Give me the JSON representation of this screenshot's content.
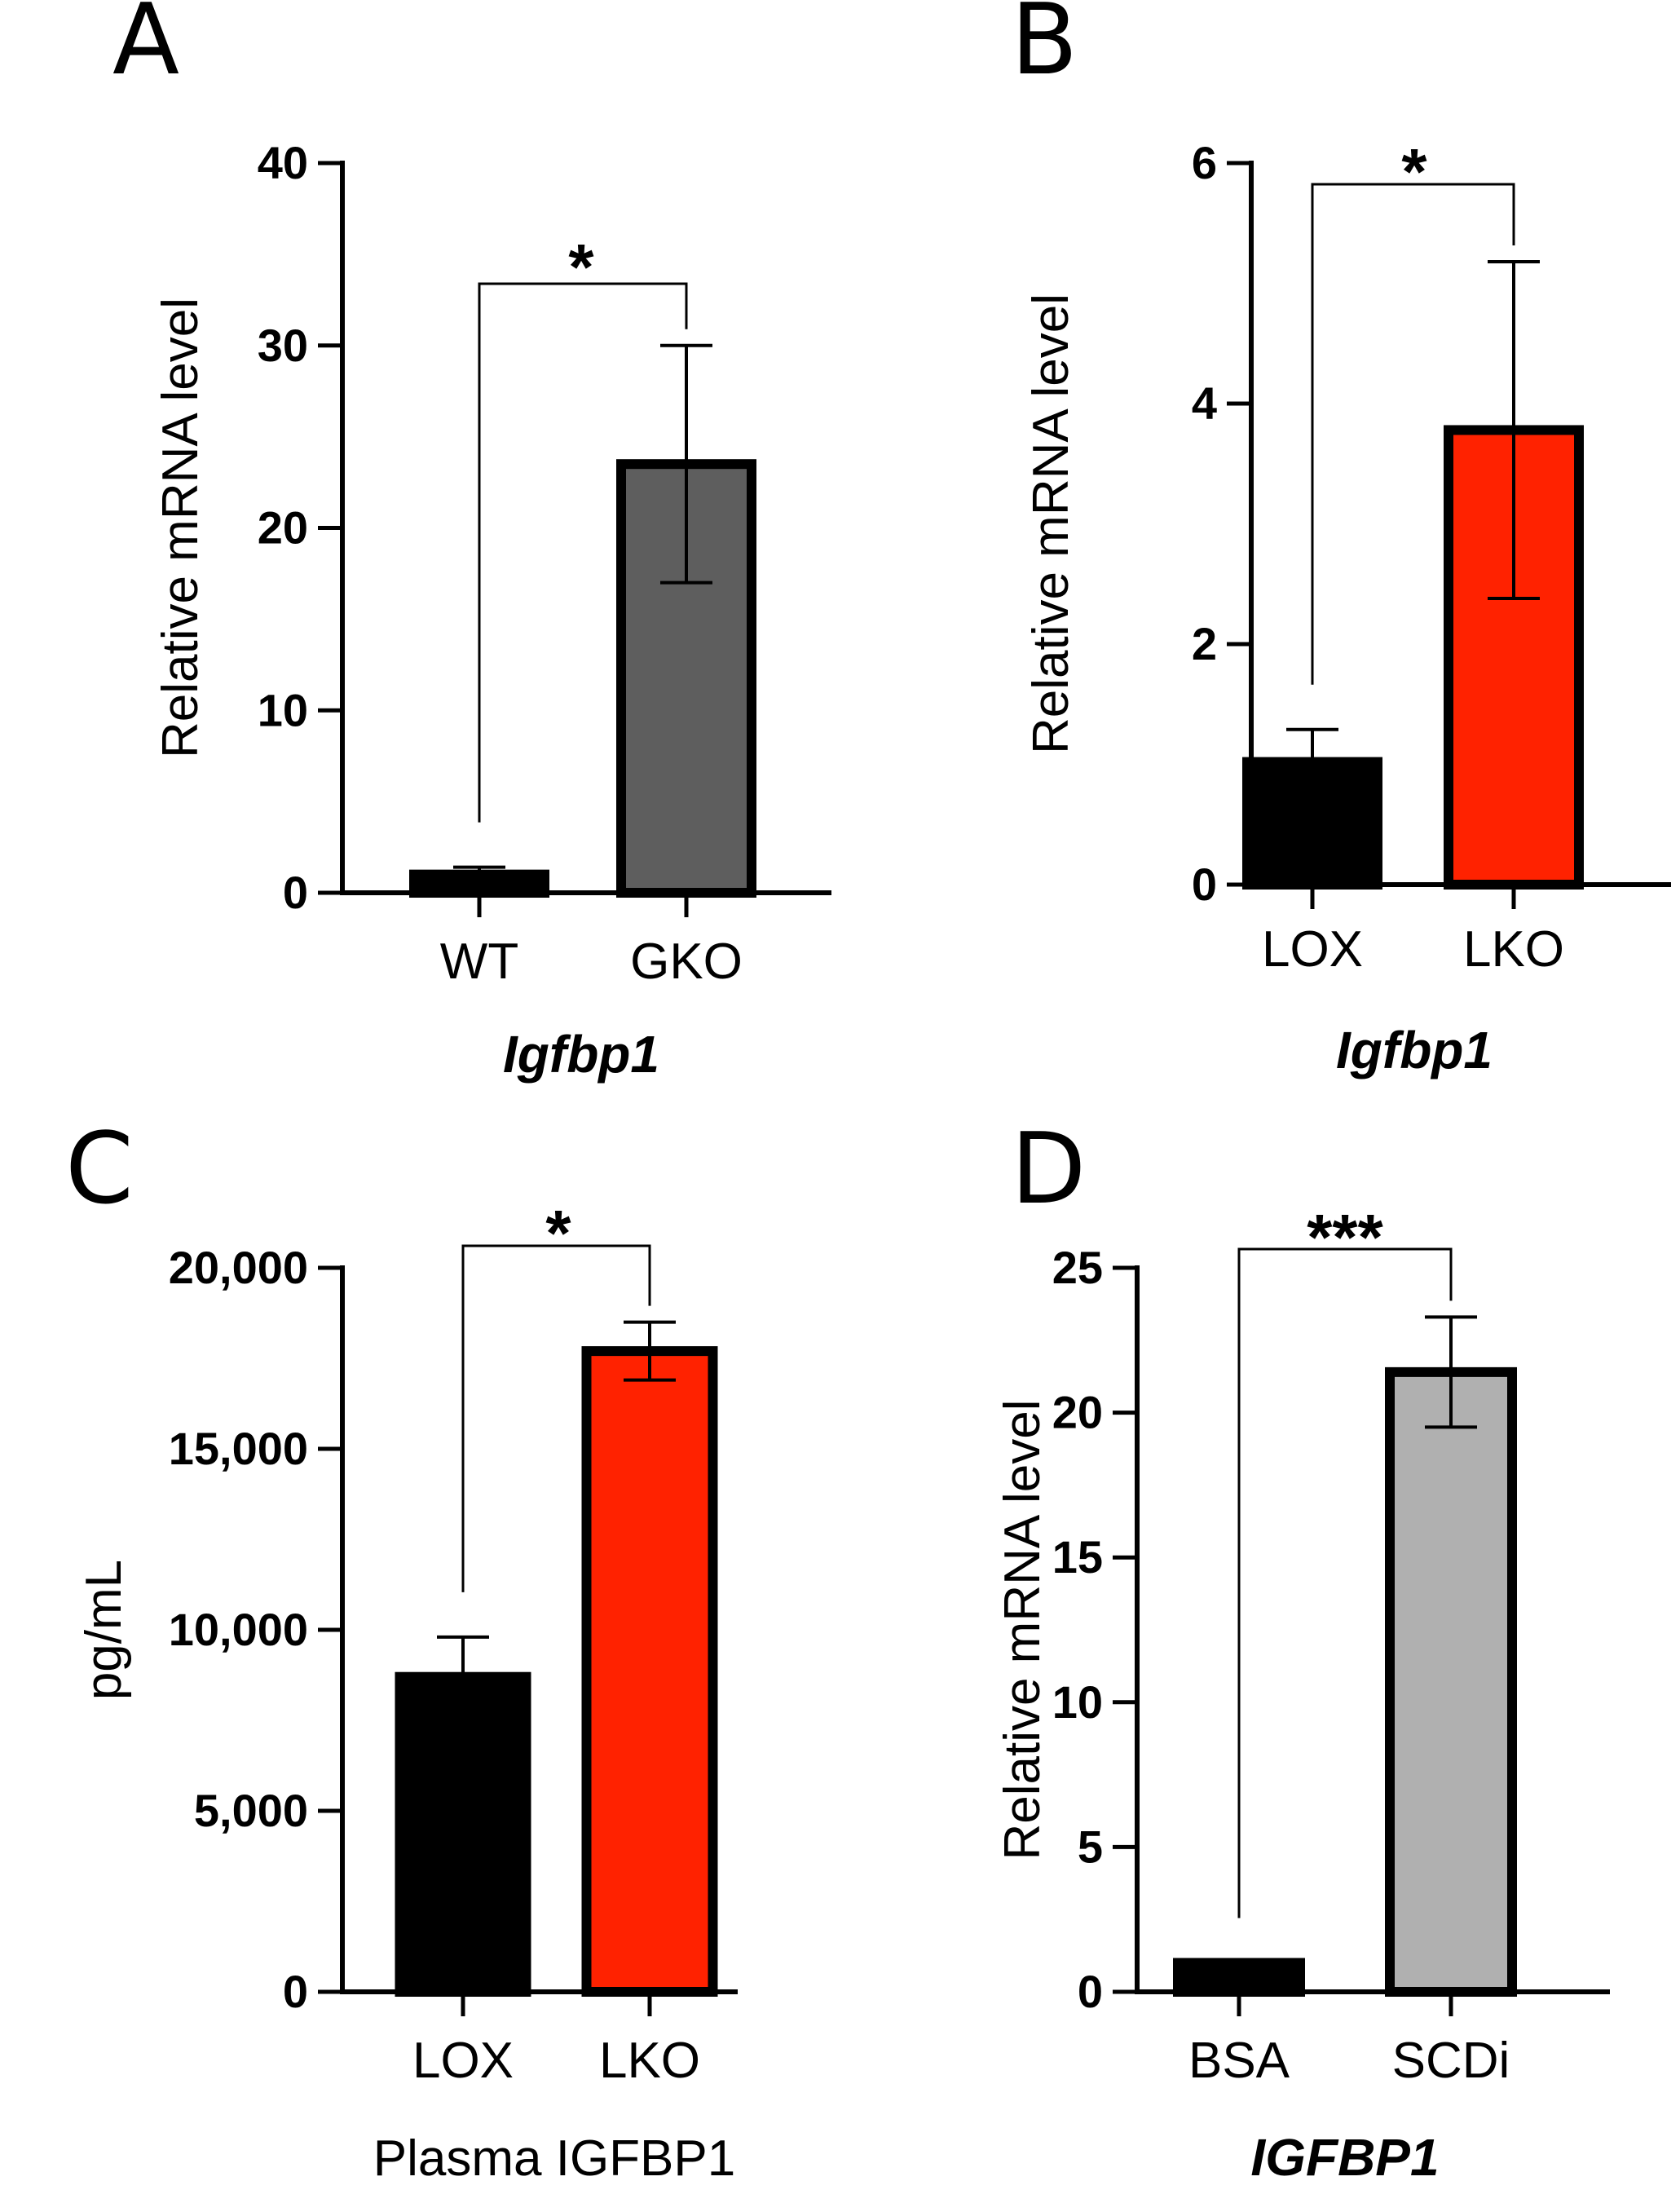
{
  "chart_data": [
    {
      "panel": "A",
      "type": "bar",
      "categories": [
        "WT",
        "GKO"
      ],
      "values": [
        1,
        23.5
      ],
      "error": [
        0.4,
        6.5
      ],
      "colors": [
        "#000000",
        "#5e5e5e"
      ],
      "ylim": [
        0,
        40
      ],
      "yticks": [
        0,
        10,
        20,
        30,
        40
      ],
      "ytick_labels": [
        "0",
        "10",
        "20",
        "30",
        "40"
      ],
      "ylabel": "Relative mRNA level",
      "xlabel": "Igfbp1",
      "xlabel_style": "italic-bold",
      "significance": "*"
    },
    {
      "panel": "B",
      "type": "bar",
      "categories": [
        "LOX",
        "LKO"
      ],
      "values": [
        1.02,
        3.78
      ],
      "error": [
        0.27,
        1.4
      ],
      "colors": [
        "#000000",
        "#ff2200"
      ],
      "ylim": [
        0,
        6
      ],
      "yticks": [
        0,
        2,
        4,
        6
      ],
      "ytick_labels": [
        "0",
        "2",
        "4",
        "6"
      ],
      "ylabel": "Relative mRNA level",
      "xlabel": "Igfbp1",
      "xlabel_style": "italic-bold",
      "significance": "*"
    },
    {
      "panel": "C",
      "type": "bar",
      "categories": [
        "LOX",
        "LKO"
      ],
      "values": [
        8700,
        17700
      ],
      "error": [
        1100,
        800
      ],
      "colors": [
        "#000000",
        "#ff2200"
      ],
      "ylim": [
        0,
        20000
      ],
      "yticks": [
        0,
        5000,
        10000,
        15000,
        20000
      ],
      "ytick_labels": [
        "0",
        "5,000",
        "10,000",
        "15,000",
        "20,000"
      ],
      "ylabel": "pg/mL",
      "xlabel": "Plasma IGFBP1",
      "xlabel_style": "normal",
      "significance": "*"
    },
    {
      "panel": "D",
      "type": "bar",
      "categories": [
        "BSA",
        "SCDi"
      ],
      "values": [
        1,
        21.4
      ],
      "error": [
        0,
        1.9
      ],
      "colors": [
        "#000000",
        "#b0b0b0"
      ],
      "ylim": [
        0,
        25
      ],
      "yticks": [
        0,
        5,
        10,
        15,
        20,
        25
      ],
      "ytick_labels": [
        "0",
        "5",
        "10",
        "15",
        "20",
        "25"
      ],
      "ylabel": "Relative mRNA level",
      "xlabel": "IGFBP1",
      "xlabel_style": "italic-bold",
      "significance": "***"
    }
  ]
}
